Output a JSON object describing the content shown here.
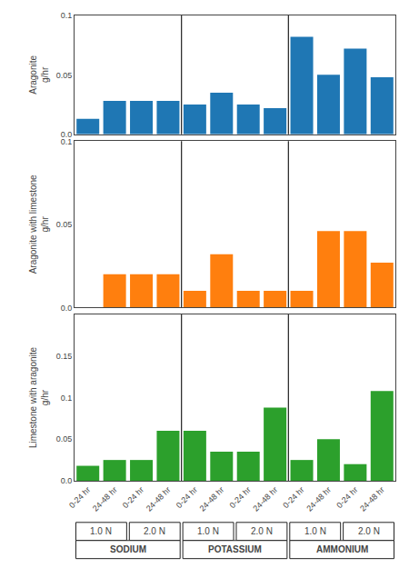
{
  "chart_data": [
    {
      "type": "bar",
      "ylabel": "Aragonite\ng/hr",
      "categories": [
        [
          "SODIUM",
          "1.0 N",
          "0-24 hr"
        ],
        [
          "SODIUM",
          "1.0 N",
          "24-48 hr"
        ],
        [
          "SODIUM",
          "2.0 N",
          "0-24 hr"
        ],
        [
          "SODIUM",
          "2.0 N",
          "24-48 hr"
        ],
        [
          "POTASSIUM",
          "1.0 N",
          "0-24 hr"
        ],
        [
          "POTASSIUM",
          "1.0 N",
          "24-48 hr"
        ],
        [
          "POTASSIUM",
          "2.0 N",
          "0-24 hr"
        ],
        [
          "POTASSIUM",
          "2.0 N",
          "24-48 hr"
        ],
        [
          "AMMONIUM",
          "1.0 N",
          "0-24 hr"
        ],
        [
          "AMMONIUM",
          "1.0 N",
          "24-48 hr"
        ],
        [
          "AMMONIUM",
          "2.0 N",
          "0-24 hr"
        ],
        [
          "AMMONIUM",
          "2.0 N",
          "24-48 hr"
        ]
      ],
      "values": [
        0.013,
        0.028,
        0.028,
        0.028,
        0.025,
        0.035,
        0.025,
        0.022,
        0.082,
        0.05,
        0.072,
        0.048
      ],
      "ylim": [
        0.0,
        0.1
      ],
      "yticks": [
        {
          "value": 0.0,
          "label": "0.0"
        },
        0.05,
        0.1
      ],
      "grid": false,
      "tick_labels": "y"
    },
    {
      "type": "bar",
      "ylabel": "Aragonite with limestone\ng/hr",
      "categories": [
        [
          "SODIUM",
          "1.0 N",
          "0-24 hr"
        ],
        [
          "SODIUM",
          "1.0 N",
          "24-48 hr"
        ],
        [
          "SODIUM",
          "2.0 N",
          "0-24 hr"
        ],
        [
          "SODIUM",
          "2.0 N",
          "24-48 hr"
        ],
        [
          "POTASSIUM",
          "1.0 N",
          "0-24 hr"
        ],
        [
          "POTASSIUM",
          "1.0 N",
          "24-48 hr"
        ],
        [
          "POTASSIUM",
          "2.0 N",
          "0-24 hr"
        ],
        [
          "POTASSIUM",
          "2.0 N",
          "24-48 hr"
        ],
        [
          "AMMONIUM",
          "1.0 N",
          "0-24 hr"
        ],
        [
          "AMMONIUM",
          "1.0 N",
          "24-48 hr"
        ],
        [
          "AMMONIUM",
          "2.0 N",
          "0-24 hr"
        ],
        [
          "AMMONIUM",
          "2.0 N",
          "24-48 hr"
        ]
      ],
      "values": [
        0.0,
        0.02,
        0.02,
        0.02,
        0.01,
        0.032,
        0.01,
        0.01,
        0.01,
        0.046,
        0.046,
        0.027
      ],
      "ylim": [
        0.0,
        0.1
      ],
      "yticks": [
        {
          "value": 0.0,
          "label": "0.0"
        },
        0.05,
        0.1
      ],
      "grid": false,
      "tick_labels": "y"
    },
    {
      "type": "bar",
      "ylabel": "Limestone with aragonite\ng/hr",
      "categories": [
        [
          "SODIUM",
          "1.0 N",
          "0-24 hr"
        ],
        [
          "SODIUM",
          "1.0 N",
          "24-48 hr"
        ],
        [
          "SODIUM",
          "2.0 N",
          "0-24 hr"
        ],
        [
          "SODIUM",
          "2.0 N",
          "24-48 hr"
        ],
        [
          "POTASSIUM",
          "1.0 N",
          "0-24 hr"
        ],
        [
          "POTASSIUM",
          "1.0 N",
          "24-48 hr"
        ],
        [
          "POTASSIUM",
          "2.0 N",
          "0-24 hr"
        ],
        [
          "POTASSIUM",
          "2.0 N",
          "24-48 hr"
        ],
        [
          "AMMONIUM",
          "1.0 N",
          "0-24 hr"
        ],
        [
          "AMMONIUM",
          "1.0 N",
          "24-48 hr"
        ],
        [
          "AMMONIUM",
          "2.0 N",
          "0-24 hr"
        ],
        [
          "AMMONIUM",
          "2.0 N",
          "24-48 hr"
        ]
      ],
      "values": [
        0.018,
        0.025,
        0.025,
        0.06,
        0.06,
        0.035,
        0.035,
        0.088,
        0.025,
        0.05,
        0.02,
        0.108
      ],
      "ylim": [
        0.0,
        0.2
      ],
      "yticks": [
        {
          "value": 0.0,
          "label": "0.0"
        },
        0.05,
        0.1,
        0.15
      ],
      "grid": false
    }
  ]
}
